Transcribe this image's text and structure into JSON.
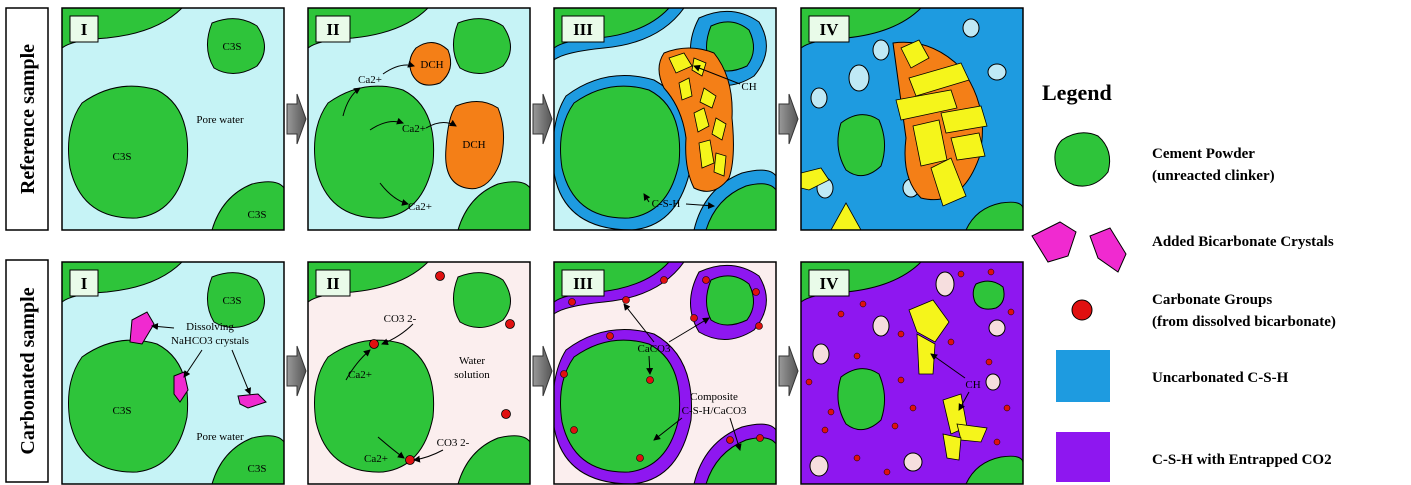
{
  "rows": {
    "reference": "Reference sample",
    "carbonated": "Carbonated sample"
  },
  "stages": {
    "s1": "I",
    "s2": "II",
    "s3": "III",
    "s4": "IV"
  },
  "labels": {
    "c3s": "C3S",
    "pore_water": "Pore water",
    "ca": "Ca2+",
    "dch": "DCH",
    "ch": "CH",
    "csh": "C-S-H",
    "dissolving_1": "Dissolving",
    "dissolving_2": "NaHCO3 crystals",
    "co3": "CO3 2-",
    "water_1": "Water",
    "water_2": "solution",
    "caco3": "CaCO3",
    "composite_1": "Composite",
    "composite_2": "C-S-H/CaCO3"
  },
  "legend": {
    "title": "Legend",
    "cement_1": "Cement Powder",
    "cement_2": "(unreacted clinker)",
    "bicarb": "Added Bicarbonate Crystals",
    "carb_1": "Carbonate Groups",
    "carb_2": "(from dissolved bicarbonate)",
    "uncarb": "Uncarbonated C-S-H",
    "entrapped": "C-S-H with Entrapped CO2"
  },
  "colors": {
    "green": "#2ec43a",
    "pore": "#c6f3f6",
    "solution": "#fbeeee",
    "orange": "#f47f17",
    "yellow": "#f5f51b",
    "blue": "#1e9be0",
    "purple": "#8e17f0",
    "magenta": "#f02ad0",
    "red": "#e01010",
    "pink": "#f6dede",
    "lightblue": "#bfe9f5"
  }
}
